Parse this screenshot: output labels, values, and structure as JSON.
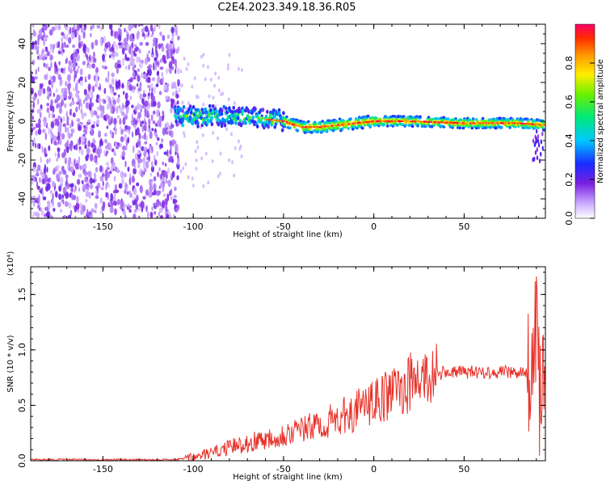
{
  "title": "C2E4.2023.349.18.36.R05",
  "colors": {
    "signal": "#e8322a",
    "noise": "#7a1fe0"
  },
  "chart_data": [
    {
      "type": "heatmap",
      "title": "C2E4.2023.349.18.36.R05",
      "xlabel": "Height of straight line (km)",
      "ylabel": "Frequency (Hz)",
      "xlim": [
        -190,
        95
      ],
      "ylim": [
        -50,
        50
      ],
      "xticks": [
        "-150",
        "-100",
        "-50",
        "0",
        "50"
      ],
      "yticks": [
        "40",
        "20",
        "0",
        "-20",
        "-40"
      ],
      "colorbar": {
        "label": "Normalized spectral amplitude",
        "range": [
          0,
          1
        ],
        "ticks": [
          "0.0",
          "0.2",
          "0.4",
          "0.6",
          "0.8"
        ],
        "colormap": "rainbow"
      },
      "features": [
        {
          "name": "noise",
          "x_range": [
            -190,
            -108
          ],
          "freq_range": [
            -50,
            50
          ],
          "amplitude": 0.1
        },
        {
          "name": "signal",
          "x": [
            -110,
            -90,
            -70,
            -50,
            -40,
            -30,
            -20,
            -10,
            0,
            20,
            50,
            80,
            95
          ],
          "freq": [
            2,
            3,
            2,
            0,
            -3,
            -3,
            -2,
            -1,
            0,
            0,
            -1,
            -1,
            -2
          ],
          "peak_amplitude": 1.0
        }
      ]
    },
    {
      "type": "line",
      "xlabel": "Height of straight line (km)",
      "ylabel": "SNR (10 * v/v)",
      "multiplier": "(x10⁴)",
      "xlim": [
        -190,
        95
      ],
      "ylim": [
        0,
        1.75
      ],
      "xticks": [
        "-150",
        "-100",
        "-50",
        "0",
        "50"
      ],
      "yticks": [
        "0.0",
        "0.5",
        "1.0",
        "1.5"
      ],
      "series": [
        {
          "color": "#e8322a",
          "x": [
            -190,
            -160,
            -130,
            -110,
            -100,
            -90,
            -80,
            -70,
            -60,
            -50,
            -40,
            -30,
            -20,
            -10,
            0,
            10,
            20,
            30,
            40,
            50,
            60,
            70,
            80,
            85,
            88,
            90,
            92,
            95
          ],
          "y": [
            0.01,
            0.01,
            0.01,
            0.01,
            0.03,
            0.07,
            0.12,
            0.16,
            0.2,
            0.24,
            0.28,
            0.32,
            0.38,
            0.45,
            0.52,
            0.61,
            0.7,
            0.76,
            0.8,
            0.8,
            0.8,
            0.8,
            0.8,
            0.78,
            0.9,
            1.2,
            0.5,
            0.8
          ]
        }
      ]
    }
  ]
}
